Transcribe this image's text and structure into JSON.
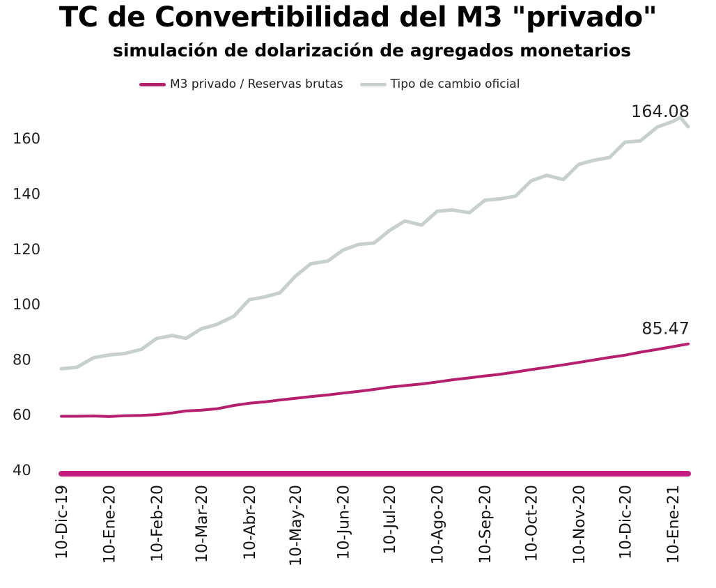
{
  "title": "TC de Convertibilidad del M3 \"privado\"",
  "subtitle": "simulación de dolarización de agregados monetarios",
  "colors": {
    "m3": "#b5206e",
    "tc": "#c8cfcf",
    "baseline": "#c41d7f"
  },
  "chart_data": {
    "type": "line",
    "title": "TC de Convertibilidad del M3 \"privado\"",
    "subtitle": "simulación de dolarización de agregados monetarios",
    "ylim": [
      40,
      170
    ],
    "yticks": [
      "40",
      "60",
      "80",
      "100",
      "120",
      "140",
      "160"
    ],
    "legend_position": "top",
    "grid": false,
    "x_labels": [
      "10-Dic-19",
      "10-Ene-20",
      "10-Feb-20",
      "10-Mar-20",
      "10-Abr-20",
      "10-May-20",
      "10-Jun-20",
      "10-Jul-20",
      "10-Ago-20",
      "10-Sep-20",
      "10-Oct-20",
      "10-Nov-20",
      "10-Dic-20",
      "10-Ene-21"
    ],
    "x": [
      "2019-12-10",
      "2019-12-20",
      "2019-12-31",
      "2020-01-10",
      "2020-01-20",
      "2020-01-31",
      "2020-02-10",
      "2020-02-20",
      "2020-02-29",
      "2020-03-10",
      "2020-03-20",
      "2020-03-31",
      "2020-04-10",
      "2020-04-20",
      "2020-04-30",
      "2020-05-10",
      "2020-05-20",
      "2020-05-31",
      "2020-06-10",
      "2020-06-20",
      "2020-06-30",
      "2020-07-10",
      "2020-07-20",
      "2020-07-31",
      "2020-08-10",
      "2020-08-20",
      "2020-08-31",
      "2020-09-10",
      "2020-09-20",
      "2020-09-30",
      "2020-10-10",
      "2020-10-20",
      "2020-10-31",
      "2020-11-10",
      "2020-11-20",
      "2020-11-30",
      "2020-12-10",
      "2020-12-20",
      "2020-12-31",
      "2021-01-10",
      "2021-01-15",
      "2021-01-20"
    ],
    "series": [
      {
        "name": "M3 privado / Reservas brutas",
        "end_label": "85.47",
        "values": [
          59.3,
          59.3,
          59.4,
          59.2,
          59.5,
          59.6,
          59.9,
          60.5,
          61.2,
          61.5,
          62.0,
          63.2,
          64.0,
          64.5,
          65.2,
          65.8,
          66.4,
          67.0,
          67.7,
          68.3,
          69.0,
          69.8,
          70.4,
          71.0,
          71.7,
          72.5,
          73.2,
          73.9,
          74.5,
          75.3,
          76.2,
          77.0,
          77.9,
          78.8,
          79.7,
          80.6,
          81.4,
          82.5,
          83.5,
          84.5,
          85.0,
          85.47
        ]
      },
      {
        "name": "Tipo de cambio oficial",
        "end_label": "164.08",
        "values": [
          76.5,
          77.0,
          80.5,
          81.5,
          82.0,
          83.5,
          87.5,
          88.5,
          87.5,
          91.0,
          92.5,
          95.5,
          101.5,
          102.5,
          104.0,
          110.0,
          114.5,
          115.5,
          119.5,
          121.5,
          122.0,
          126.5,
          130.0,
          128.5,
          133.5,
          134.0,
          133.0,
          137.5,
          138.0,
          139.0,
          144.5,
          146.5,
          145.0,
          150.5,
          152.0,
          153.0,
          158.5,
          159.0,
          164.0,
          166.0,
          167.5,
          164.08
        ]
      }
    ],
    "baseline": {
      "y": 38.5
    }
  }
}
